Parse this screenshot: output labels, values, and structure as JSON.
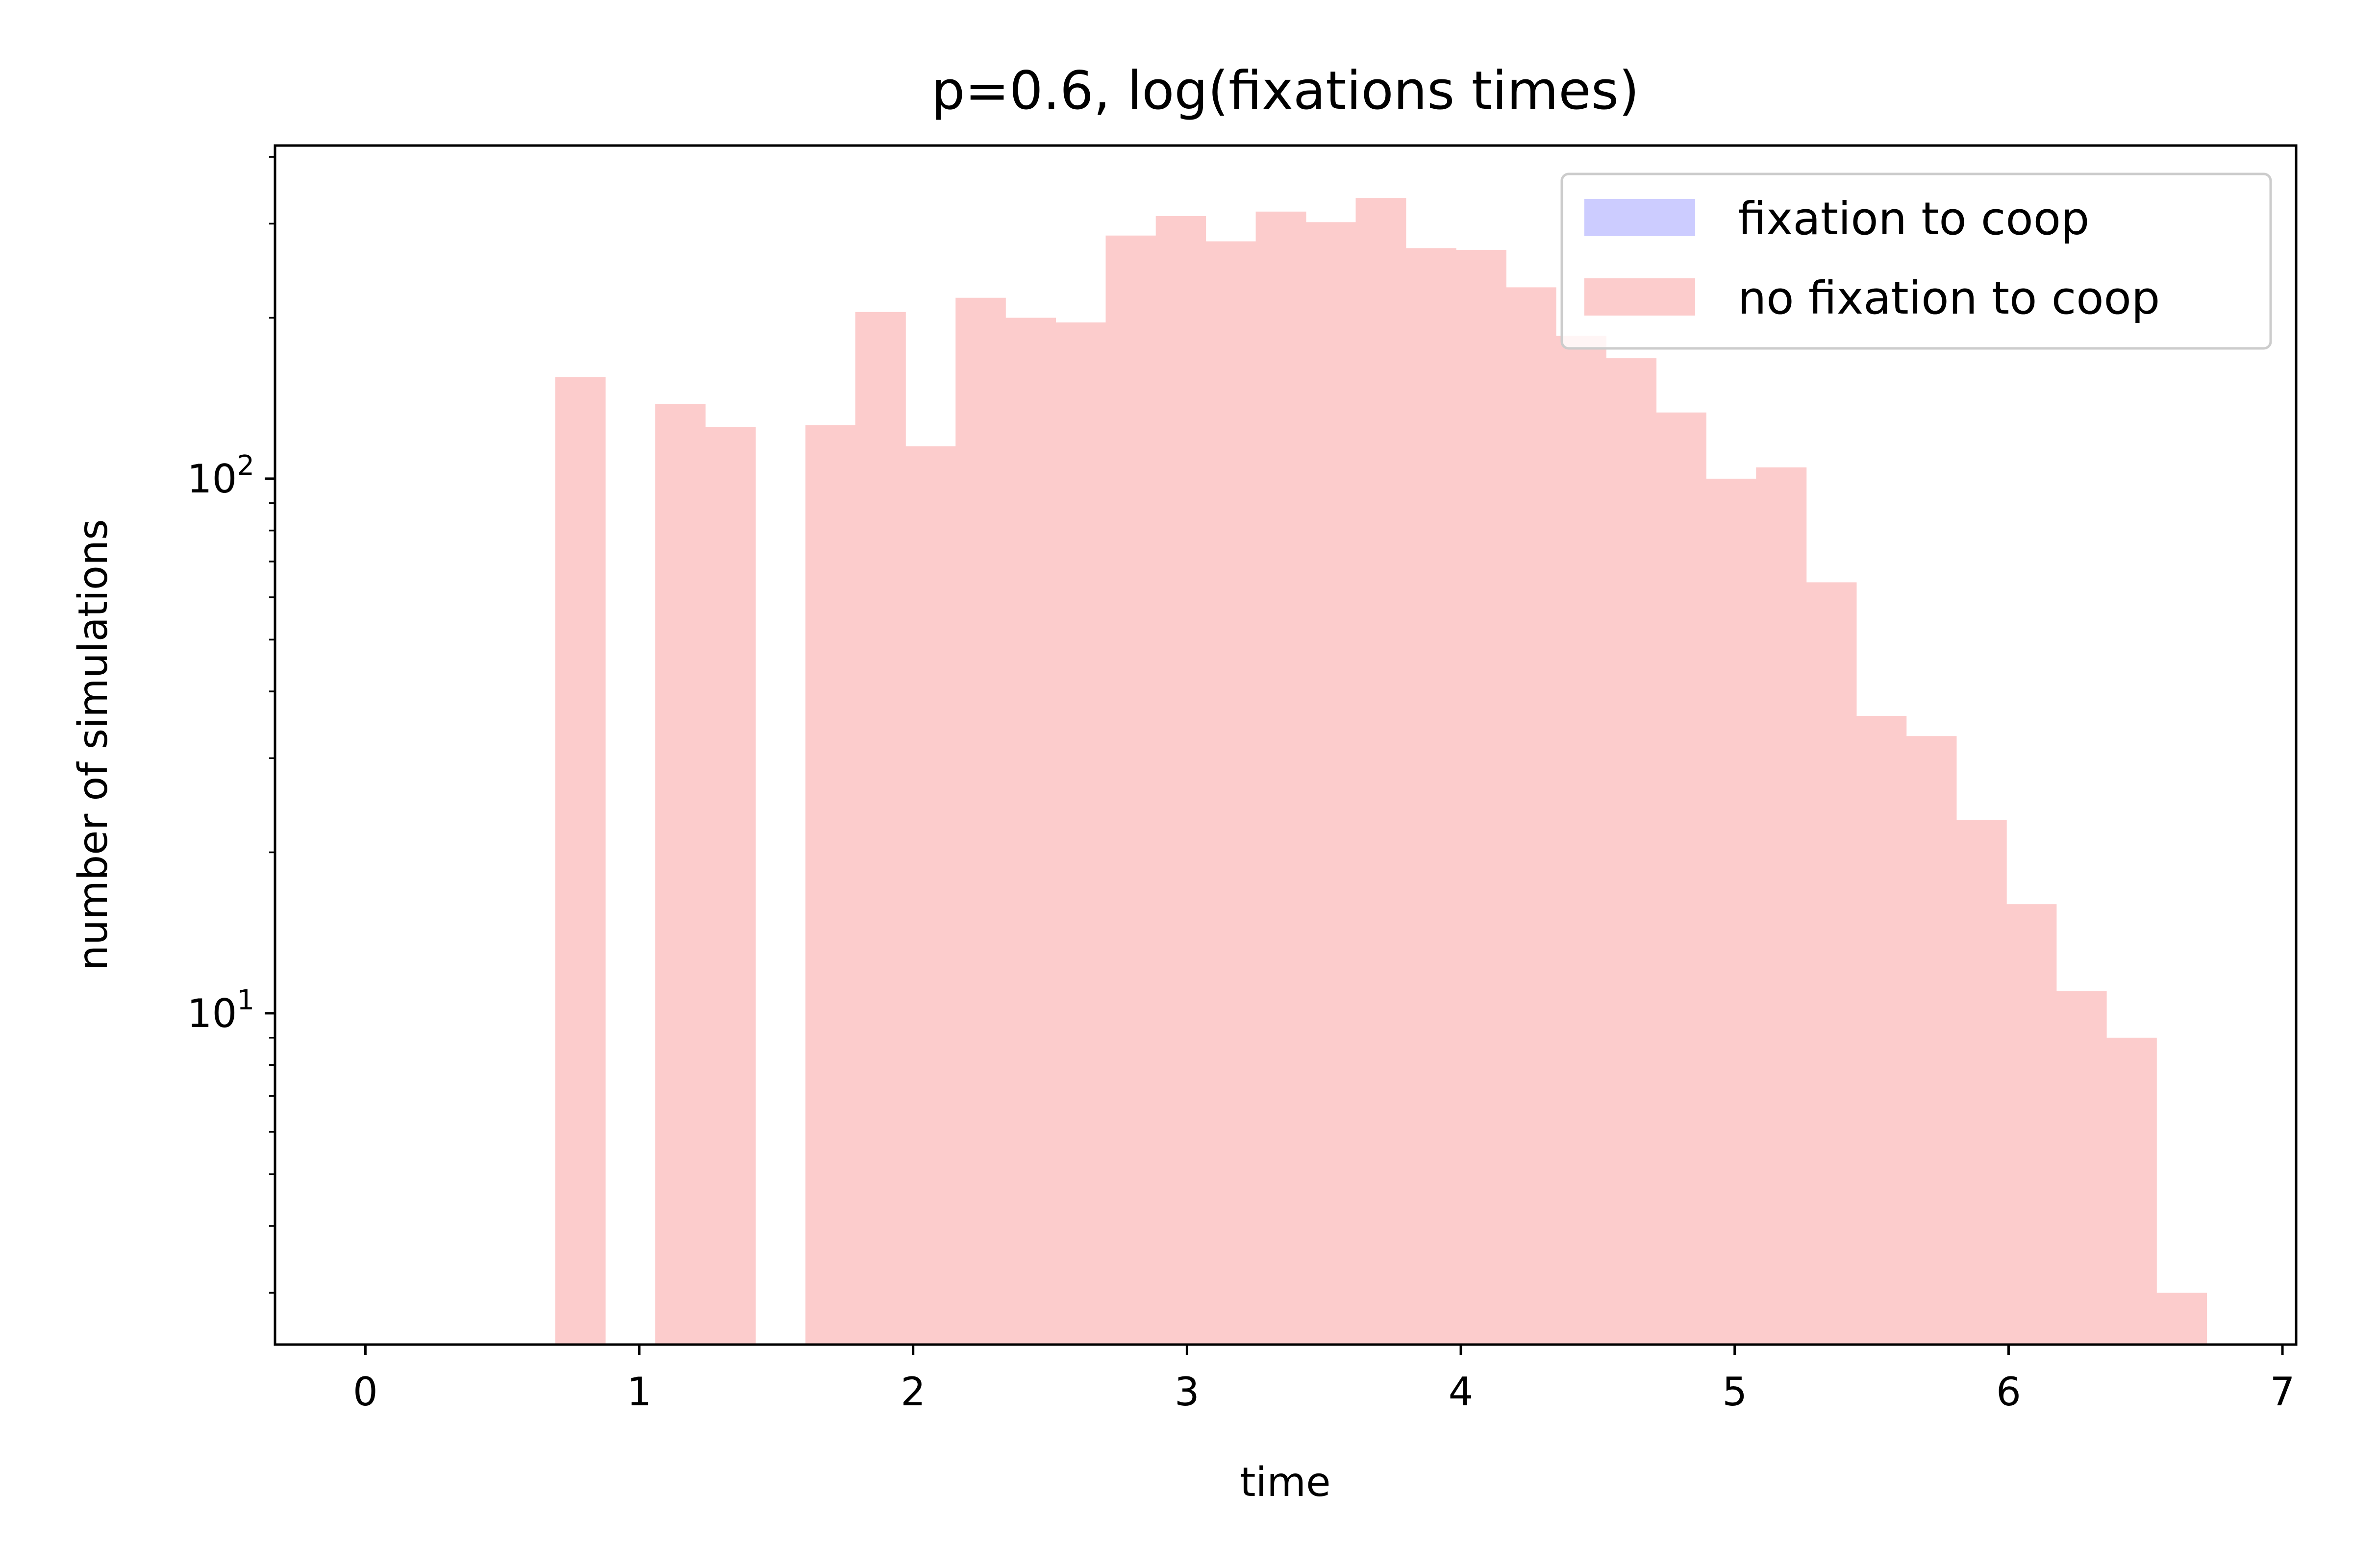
{
  "chart_data": {
    "type": "bar",
    "title": "p=0.6, log(fixations times)",
    "xlabel": "time",
    "ylabel": "number of simulations",
    "xlim": [
      -0.33,
      7.05
    ],
    "ylim": [
      2.4,
      420
    ],
    "yscale": "log",
    "grid": false,
    "legend_position": "top-right",
    "x_ticks": [
      "0",
      "1",
      "2",
      "3",
      "4",
      "5",
      "6",
      "7"
    ],
    "y_ticks": [
      {
        "value": 10,
        "label": "10",
        "exp": "1"
      },
      {
        "value": 100,
        "label": "10",
        "exp": "2"
      }
    ],
    "bin_edges": [
      0.693,
      0.876,
      1.058,
      1.241,
      1.424,
      1.607,
      1.789,
      1.972,
      2.155,
      2.337,
      2.52,
      2.703,
      2.886,
      3.068,
      3.251,
      3.434,
      3.616,
      3.799,
      3.982,
      4.165,
      4.347,
      4.53,
      4.713,
      4.895,
      5.078,
      5.261,
      5.444,
      5.626,
      5.809,
      5.992,
      6.174,
      6.357,
      6.54,
      6.723
    ],
    "series": [
      {
        "name": "fixation to coop",
        "color": "#ccccff",
        "values": []
      },
      {
        "name": "no fixation to coop",
        "color": "#fccccc",
        "values": [
          155,
          0,
          138,
          125,
          0,
          126,
          205,
          115,
          218,
          200,
          196,
          285,
          310,
          278,
          316,
          302,
          335,
          270,
          268,
          228,
          185,
          168,
          133,
          100,
          105,
          64,
          36,
          33,
          23,
          16,
          11,
          9,
          3
        ]
      }
    ]
  }
}
